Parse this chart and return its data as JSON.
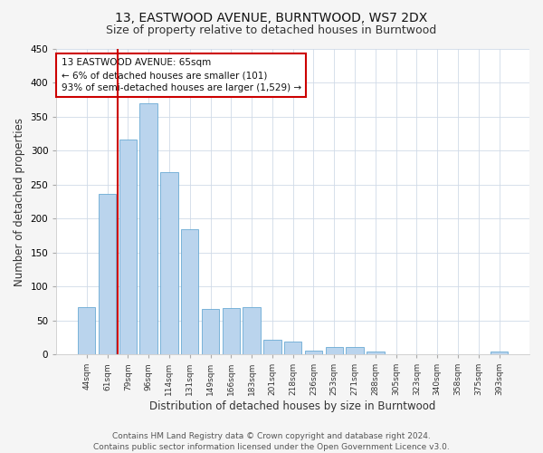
{
  "title": "13, EASTWOOD AVENUE, BURNTWOOD, WS7 2DX",
  "subtitle": "Size of property relative to detached houses in Burntwood",
  "xlabel": "Distribution of detached houses by size in Burntwood",
  "ylabel": "Number of detached properties",
  "categories": [
    "44sqm",
    "61sqm",
    "79sqm",
    "96sqm",
    "114sqm",
    "131sqm",
    "149sqm",
    "166sqm",
    "183sqm",
    "201sqm",
    "218sqm",
    "236sqm",
    "253sqm",
    "271sqm",
    "288sqm",
    "305sqm",
    "323sqm",
    "340sqm",
    "358sqm",
    "375sqm",
    "393sqm"
  ],
  "values": [
    70,
    237,
    316,
    370,
    268,
    184,
    67,
    68,
    70,
    22,
    19,
    6,
    11,
    11,
    4,
    0,
    0,
    0,
    0,
    0,
    4
  ],
  "bar_color": "#bad4ed",
  "bar_edge_color": "#6aaad4",
  "vline_x": 1.5,
  "vline_color": "#cc0000",
  "annotation_text": "13 EASTWOOD AVENUE: 65sqm\n← 6% of detached houses are smaller (101)\n93% of semi-detached houses are larger (1,529) →",
  "annotation_box_color": "#ffffff",
  "annotation_box_edgecolor": "#cc0000",
  "ylim": [
    0,
    450
  ],
  "yticks": [
    0,
    50,
    100,
    150,
    200,
    250,
    300,
    350,
    400,
    450
  ],
  "bg_color": "#f5f5f5",
  "plot_bg_color": "#ffffff",
  "footer": "Contains HM Land Registry data © Crown copyright and database right 2024.\nContains public sector information licensed under the Open Government Licence v3.0.",
  "title_fontsize": 10,
  "subtitle_fontsize": 9,
  "xlabel_fontsize": 8.5,
  "ylabel_fontsize": 8.5,
  "footer_fontsize": 6.5,
  "annotation_fontsize": 7.5
}
